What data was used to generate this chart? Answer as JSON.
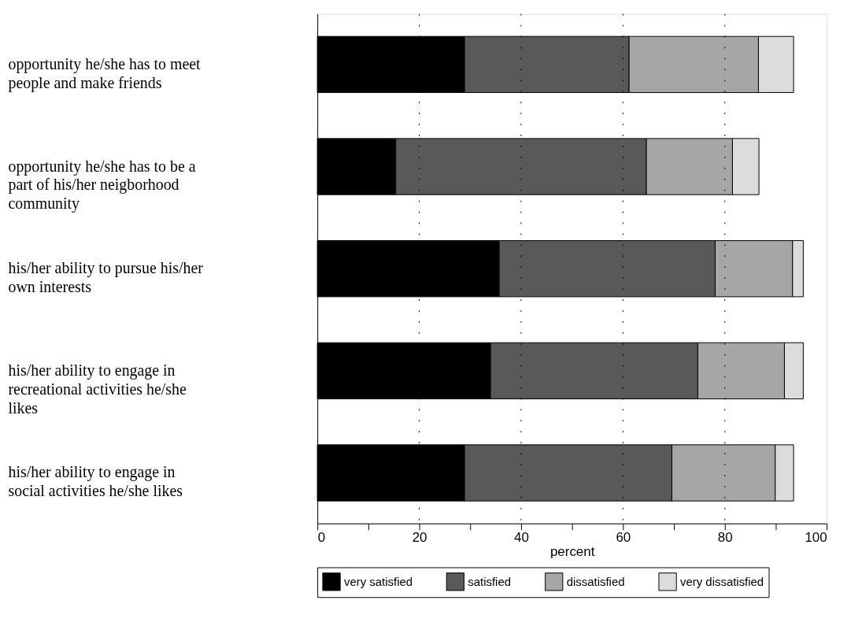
{
  "chart_data": {
    "type": "bar",
    "orientation": "horizontal",
    "stacked": true,
    "categories": [
      "opportunity he/she has to meet people and make friends",
      "opportunity he/she has to be a part of his/her neigborhood community",
      "his/her ability to pursue his/her own interests",
      "his/her ability to engage in recreational activities he/she likes",
      "his/her ability to engage in social activities he/she likes"
    ],
    "series": [
      {
        "name": "very satisfied",
        "color": "#000000",
        "values": [
          28.9,
          15.4,
          35.7,
          34.0,
          28.9
        ]
      },
      {
        "name": "satisfied",
        "color": "#595959",
        "values": [
          32.3,
          49.2,
          42.4,
          40.7,
          40.7
        ]
      },
      {
        "name": "dissatisfied",
        "color": "#a6a6a6",
        "values": [
          25.4,
          16.9,
          15.2,
          17.0,
          20.3
        ]
      },
      {
        "name": "very dissatisfied",
        "color": "#dcdcdc",
        "values": [
          6.9,
          5.2,
          2.1,
          3.7,
          3.6
        ]
      }
    ],
    "xlabel": "percent",
    "xlim": [
      0,
      100
    ],
    "xticks": [
      0,
      {
        "value": 10,
        "label": null
      },
      20,
      {
        "value": 30,
        "label": null
      },
      40,
      {
        "value": 50,
        "label": null
      },
      60,
      {
        "value": 70,
        "label": null
      },
      80,
      {
        "value": 90,
        "label": null
      },
      100
    ],
    "grid": "x",
    "legend": "bottom"
  }
}
